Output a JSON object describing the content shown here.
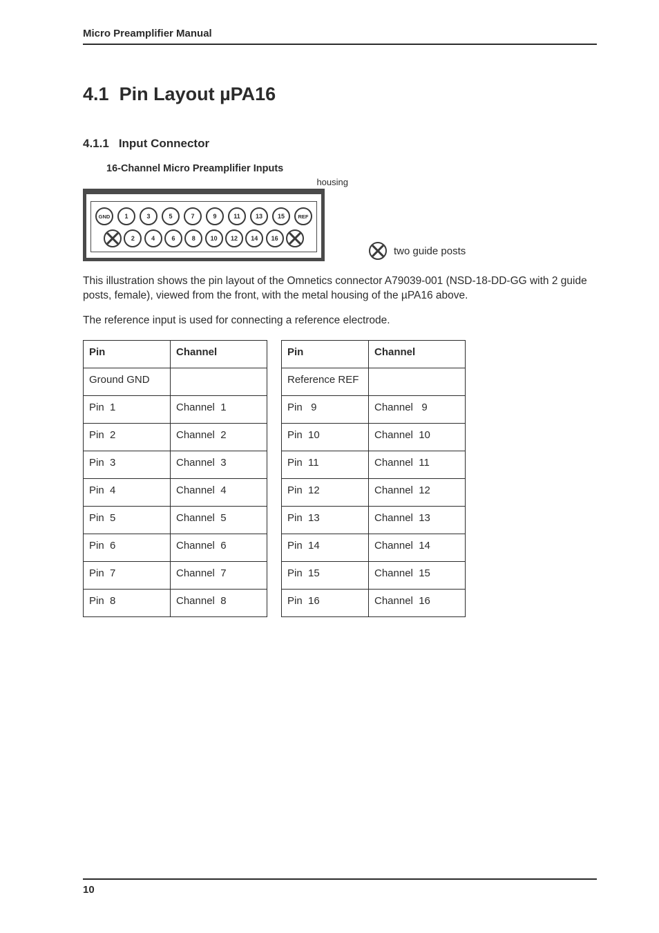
{
  "header": {
    "running_head": "Micro Preamplifier Manual"
  },
  "footer": {
    "page_number": "10"
  },
  "section": {
    "number": "4.1",
    "title": "Pin Layout µPA16",
    "sub_number": "4.1.1",
    "sub_title": "Input Connector"
  },
  "diagram": {
    "title": "16-Channel Micro Preamplifier Inputs",
    "housing_label": "housing",
    "guide_posts_label": "two guide posts",
    "top_row": [
      "GND",
      "1",
      "3",
      "5",
      "7",
      "9",
      "11",
      "13",
      "15",
      "REF"
    ],
    "bottom_row": [
      "2",
      "4",
      "6",
      "8",
      "10",
      "12",
      "14",
      "16"
    ],
    "pin_text_color": "#3a3a3a",
    "border_color": "#4a4a4a"
  },
  "paragraphs": {
    "p1": "This illustration shows the pin layout of the Omnetics connector A79039-001 (NSD-18-DD-GG with 2 guide posts, female), viewed from the front, with the metal housing of the µPA16 above.",
    "p2": "The reference input is used for connecting a reference electrode."
  },
  "tables": {
    "left": {
      "headers": [
        "Pin",
        "Channel"
      ],
      "rows": [
        [
          "Ground GND",
          ""
        ],
        [
          "Pin  1",
          "Channel  1"
        ],
        [
          "Pin  2",
          "Channel  2"
        ],
        [
          "Pin  3",
          "Channel  3"
        ],
        [
          "Pin  4",
          "Channel  4"
        ],
        [
          "Pin  5",
          "Channel  5"
        ],
        [
          "Pin  6",
          "Channel  6"
        ],
        [
          "Pin  7",
          "Channel  7"
        ],
        [
          "Pin  8",
          "Channel  8"
        ]
      ]
    },
    "right": {
      "headers": [
        "Pin",
        "Channel"
      ],
      "rows": [
        [
          "Reference REF",
          ""
        ],
        [
          "Pin   9",
          "Channel   9"
        ],
        [
          "Pin  10",
          "Channel  10"
        ],
        [
          "Pin  11",
          "Channel  11"
        ],
        [
          "Pin  12",
          "Channel  12"
        ],
        [
          "Pin  13",
          "Channel  13"
        ],
        [
          "Pin  14",
          "Channel  14"
        ],
        [
          "Pin  15",
          "Channel  15"
        ],
        [
          "Pin  16",
          "Channel  16"
        ]
      ]
    }
  }
}
